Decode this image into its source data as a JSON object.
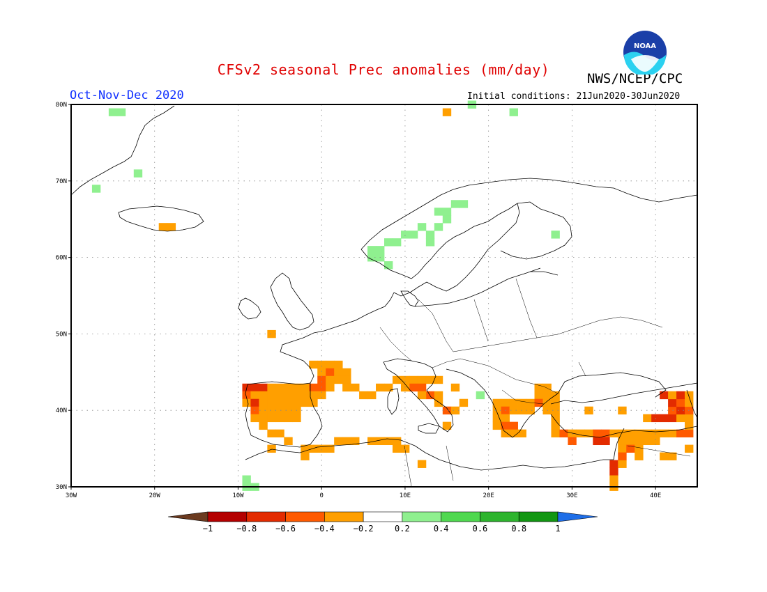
{
  "header": {
    "title": "CFSv2 seasonal Prec anomalies (mm/day)",
    "org": "NWS/NCEP/CPC",
    "period": "Oct-Nov-Dec 2020",
    "initial_conditions": "Initial conditions: 21Jun2020-30Jun2020",
    "logo_text": "NOAA"
  },
  "map": {
    "lon_range": [
      -30,
      45
    ],
    "lat_range": [
      30,
      80
    ],
    "lon_ticks": [
      "30W",
      "20W",
      "10W",
      "0",
      "10E",
      "20E",
      "30E",
      "40E"
    ],
    "lat_ticks": [
      "30N",
      "40N",
      "50N",
      "60N",
      "70N",
      "80N"
    ],
    "grid_style": "dotted"
  },
  "colorbar": {
    "labels": [
      "-1",
      "-0.8",
      "-0.6",
      "-0.4",
      "-0.2",
      "0.2",
      "0.4",
      "0.6",
      "0.8",
      "1"
    ],
    "colors": [
      "#6b3a1f",
      "#b40000",
      "#e32b00",
      "#ff5a00",
      "#ff9f00",
      "#ffffff",
      "#8ff08f",
      "#4fd84f",
      "#2db42d",
      "#129612",
      "#1e6ee8"
    ]
  },
  "anomalies": [
    {
      "lon": -25,
      "lat": 79,
      "v": 0.3
    },
    {
      "lon": -24,
      "lat": 79,
      "v": 0.3
    },
    {
      "lon": -27,
      "lat": 69,
      "v": 0.3
    },
    {
      "lon": -22,
      "lat": 71,
      "v": 0.3
    },
    {
      "lon": -19,
      "lat": 64,
      "v": -0.3
    },
    {
      "lon": -18,
      "lat": 64,
      "v": -0.3
    },
    {
      "lon": 13,
      "lat": 63,
      "v": 0.3
    },
    {
      "lon": 14,
      "lat": 64,
      "v": 0.3
    },
    {
      "lon": 15,
      "lat": 65,
      "v": 0.3
    },
    {
      "lon": 15,
      "lat": 66,
      "v": 0.3
    },
    {
      "lon": 14,
      "lat": 66,
      "v": 0.3
    },
    {
      "lon": 12,
      "lat": 64,
      "v": 0.3
    },
    {
      "lon": 11,
      "lat": 63,
      "v": 0.3
    },
    {
      "lon": 10,
      "lat": 63,
      "v": 0.3
    },
    {
      "lon": 9,
      "lat": 62,
      "v": 0.3
    },
    {
      "lon": 8,
      "lat": 62,
      "v": 0.3
    },
    {
      "lon": 7,
      "lat": 61,
      "v": 0.3
    },
    {
      "lon": 6,
      "lat": 61,
      "v": 0.3
    },
    {
      "lon": 6,
      "lat": 60,
      "v": 0.3
    },
    {
      "lon": 7,
      "lat": 60,
      "v": 0.3
    },
    {
      "lon": 8,
      "lat": 59,
      "v": 0.3
    },
    {
      "lon": 13,
      "lat": 62,
      "v": 0.3
    },
    {
      "lon": 16,
      "lat": 67,
      "v": 0.3
    },
    {
      "lon": 17,
      "lat": 67,
      "v": 0.3
    },
    {
      "lon": 28,
      "lat": 63,
      "v": 0.3
    },
    {
      "lon": 18,
      "lat": 80,
      "v": 0.3
    },
    {
      "lon": 23,
      "lat": 79,
      "v": 0.3
    },
    {
      "lon": 15,
      "lat": 79,
      "v": -0.3
    },
    {
      "lon": -6,
      "lat": 50,
      "v": -0.3
    },
    {
      "lon": -9,
      "lat": 43,
      "v": -0.7
    },
    {
      "lon": -8,
      "lat": 43,
      "v": -0.7
    },
    {
      "lon": -7,
      "lat": 43,
      "v": -0.7
    },
    {
      "lon": -6,
      "lat": 43,
      "v": -0.3
    },
    {
      "lon": -5,
      "lat": 43,
      "v": -0.3
    },
    {
      "lon": -4,
      "lat": 43,
      "v": -0.3
    },
    {
      "lon": -3,
      "lat": 43,
      "v": -0.3
    },
    {
      "lon": -2,
      "lat": 43,
      "v": -0.3
    },
    {
      "lon": -1,
      "lat": 43,
      "v": -0.5
    },
    {
      "lon": 0,
      "lat": 43,
      "v": -0.5
    },
    {
      "lon": 1,
      "lat": 43,
      "v": -0.3
    },
    {
      "lon": -9,
      "lat": 42,
      "v": -0.5
    },
    {
      "lon": -8,
      "lat": 42,
      "v": -0.3
    },
    {
      "lon": -7,
      "lat": 42,
      "v": -0.3
    },
    {
      "lon": -6,
      "lat": 42,
      "v": -0.3
    },
    {
      "lon": -5,
      "lat": 42,
      "v": -0.3
    },
    {
      "lon": -4,
      "lat": 42,
      "v": -0.3
    },
    {
      "lon": -3,
      "lat": 42,
      "v": -0.3
    },
    {
      "lon": -2,
      "lat": 42,
      "v": -0.3
    },
    {
      "lon": -1,
      "lat": 42,
      "v": -0.3
    },
    {
      "lon": 0,
      "lat": 42,
      "v": -0.3
    },
    {
      "lon": -9,
      "lat": 41,
      "v": -0.3
    },
    {
      "lon": -8,
      "lat": 41,
      "v": -0.7
    },
    {
      "lon": -7,
      "lat": 41,
      "v": -0.3
    },
    {
      "lon": -6,
      "lat": 41,
      "v": -0.3
    },
    {
      "lon": -5,
      "lat": 41,
      "v": -0.3
    },
    {
      "lon": -4,
      "lat": 41,
      "v": -0.3
    },
    {
      "lon": -3,
      "lat": 41,
      "v": -0.3
    },
    {
      "lon": -2,
      "lat": 41,
      "v": -0.3
    },
    {
      "lon": -1,
      "lat": 41,
      "v": -0.3
    },
    {
      "lon": -8,
      "lat": 40,
      "v": -0.5
    },
    {
      "lon": -7,
      "lat": 40,
      "v": -0.3
    },
    {
      "lon": -6,
      "lat": 40,
      "v": -0.3
    },
    {
      "lon": -5,
      "lat": 40,
      "v": -0.3
    },
    {
      "lon": -4,
      "lat": 40,
      "v": -0.3
    },
    {
      "lon": -3,
      "lat": 40,
      "v": -0.3
    },
    {
      "lon": -8,
      "lat": 39,
      "v": -0.3
    },
    {
      "lon": -7,
      "lat": 39,
      "v": -0.3
    },
    {
      "lon": -6,
      "lat": 39,
      "v": -0.3
    },
    {
      "lon": -5,
      "lat": 39,
      "v": -0.3
    },
    {
      "lon": -4,
      "lat": 39,
      "v": -0.3
    },
    {
      "lon": -3,
      "lat": 39,
      "v": -0.3
    },
    {
      "lon": -7,
      "lat": 38,
      "v": -0.3
    },
    {
      "lon": -6,
      "lat": 37,
      "v": -0.3
    },
    {
      "lon": -5,
      "lat": 37,
      "v": -0.3
    },
    {
      "lon": -4,
      "lat": 36,
      "v": -0.3
    },
    {
      "lon": -1,
      "lat": 46,
      "v": -0.3
    },
    {
      "lon": 0,
      "lat": 46,
      "v": -0.3
    },
    {
      "lon": 1,
      "lat": 46,
      "v": -0.3
    },
    {
      "lon": 2,
      "lat": 46,
      "v": -0.3
    },
    {
      "lon": 0,
      "lat": 45,
      "v": -0.3
    },
    {
      "lon": 1,
      "lat": 45,
      "v": -0.5
    },
    {
      "lon": 2,
      "lat": 45,
      "v": -0.3
    },
    {
      "lon": 3,
      "lat": 45,
      "v": -0.3
    },
    {
      "lon": 0,
      "lat": 44,
      "v": -0.5
    },
    {
      "lon": 1,
      "lat": 44,
      "v": -0.3
    },
    {
      "lon": 2,
      "lat": 44,
      "v": -0.3
    },
    {
      "lon": 3,
      "lat": 44,
      "v": -0.3
    },
    {
      "lon": 4,
      "lat": 43,
      "v": -0.3
    },
    {
      "lon": 5,
      "lat": 42,
      "v": -0.3
    },
    {
      "lon": 6,
      "lat": 42,
      "v": -0.3
    },
    {
      "lon": 7,
      "lat": 43,
      "v": -0.3
    },
    {
      "lon": 8,
      "lat": 43,
      "v": -0.3
    },
    {
      "lon": 9,
      "lat": 44,
      "v": -0.3
    },
    {
      "lon": 10,
      "lat": 44,
      "v": -0.3
    },
    {
      "lon": 11,
      "lat": 44,
      "v": -0.3
    },
    {
      "lon": 12,
      "lat": 44,
      "v": -0.3
    },
    {
      "lon": 13,
      "lat": 44,
      "v": -0.3
    },
    {
      "lon": 14,
      "lat": 44,
      "v": -0.3
    },
    {
      "lon": 11,
      "lat": 43,
      "v": -0.5
    },
    {
      "lon": 12,
      "lat": 43,
      "v": -0.5
    },
    {
      "lon": 13,
      "lat": 42,
      "v": -0.5
    },
    {
      "lon": 12,
      "lat": 42,
      "v": -0.3
    },
    {
      "lon": 14,
      "lat": 42,
      "v": -0.3
    },
    {
      "lon": 14,
      "lat": 41,
      "v": -0.3
    },
    {
      "lon": 15,
      "lat": 40,
      "v": -0.5
    },
    {
      "lon": 16,
      "lat": 40,
      "v": -0.3
    },
    {
      "lon": 17,
      "lat": 41,
      "v": -0.3
    },
    {
      "lon": 15,
      "lat": 38,
      "v": -0.3
    },
    {
      "lon": 16,
      "lat": 43,
      "v": -0.3
    },
    {
      "lon": 21,
      "lat": 41,
      "v": -0.3
    },
    {
      "lon": 22,
      "lat": 41,
      "v": -0.3
    },
    {
      "lon": 23,
      "lat": 41,
      "v": -0.3
    },
    {
      "lon": 24,
      "lat": 41,
      "v": -0.3
    },
    {
      "lon": 25,
      "lat": 41,
      "v": -0.3
    },
    {
      "lon": 26,
      "lat": 42,
      "v": -0.3
    },
    {
      "lon": 27,
      "lat": 42,
      "v": -0.3
    },
    {
      "lon": 28,
      "lat": 42,
      "v": -0.3
    },
    {
      "lon": 26,
      "lat": 43,
      "v": -0.3
    },
    {
      "lon": 27,
      "lat": 43,
      "v": -0.3
    },
    {
      "lon": 21,
      "lat": 40,
      "v": -0.3
    },
    {
      "lon": 22,
      "lat": 40,
      "v": -0.5
    },
    {
      "lon": 23,
      "lat": 40,
      "v": -0.3
    },
    {
      "lon": 24,
      "lat": 40,
      "v": -0.3
    },
    {
      "lon": 25,
      "lat": 40,
      "v": -0.3
    },
    {
      "lon": 26,
      "lat": 41,
      "v": -0.5
    },
    {
      "lon": 27,
      "lat": 41,
      "v": -0.3
    },
    {
      "lon": 28,
      "lat": 41,
      "v": -0.3
    },
    {
      "lon": 21,
      "lat": 39,
      "v": -0.3
    },
    {
      "lon": 22,
      "lat": 39,
      "v": -0.3
    },
    {
      "lon": 21,
      "lat": 38,
      "v": -0.3
    },
    {
      "lon": 22,
      "lat": 38,
      "v": -0.5
    },
    {
      "lon": 23,
      "lat": 38,
      "v": -0.5
    },
    {
      "lon": 24,
      "lat": 37,
      "v": -0.3
    },
    {
      "lon": 22,
      "lat": 37,
      "v": -0.3
    },
    {
      "lon": 23,
      "lat": 37,
      "v": -0.3
    },
    {
      "lon": 27,
      "lat": 40,
      "v": -0.3
    },
    {
      "lon": 28,
      "lat": 40,
      "v": -0.3
    },
    {
      "lon": 28,
      "lat": 39,
      "v": -0.3
    },
    {
      "lon": 28,
      "lat": 38,
      "v": -0.3
    },
    {
      "lon": 28,
      "lat": 37,
      "v": -0.3
    },
    {
      "lon": 29,
      "lat": 37,
      "v": -0.5
    },
    {
      "lon": 30,
      "lat": 37,
      "v": -0.3
    },
    {
      "lon": 30,
      "lat": 36,
      "v": -0.5
    },
    {
      "lon": 31,
      "lat": 37,
      "v": -0.3
    },
    {
      "lon": 32,
      "lat": 37,
      "v": -0.3
    },
    {
      "lon": 33,
      "lat": 37,
      "v": -0.5
    },
    {
      "lon": 34,
      "lat": 37,
      "v": -0.5
    },
    {
      "lon": 33,
      "lat": 36,
      "v": -0.7
    },
    {
      "lon": 34,
      "lat": 36,
      "v": -0.7
    },
    {
      "lon": 35,
      "lat": 37,
      "v": -0.3
    },
    {
      "lon": 36,
      "lat": 37,
      "v": -0.3
    },
    {
      "lon": 37,
      "lat": 37,
      "v": -0.3
    },
    {
      "lon": 38,
      "lat": 37,
      "v": -0.3
    },
    {
      "lon": 39,
      "lat": 37,
      "v": -0.3
    },
    {
      "lon": 40,
      "lat": 37,
      "v": -0.3
    },
    {
      "lon": 41,
      "lat": 37,
      "v": -0.3
    },
    {
      "lon": 42,
      "lat": 37,
      "v": -0.3
    },
    {
      "lon": 43,
      "lat": 37,
      "v": -0.5
    },
    {
      "lon": 44,
      "lat": 37,
      "v": -0.5
    },
    {
      "lon": 44,
      "lat": 38,
      "v": -0.3
    },
    {
      "lon": 39,
      "lat": 39,
      "v": -0.3
    },
    {
      "lon": 40,
      "lat": 39,
      "v": -0.7
    },
    {
      "lon": 41,
      "lat": 39,
      "v": -0.7
    },
    {
      "lon": 42,
      "lat": 39,
      "v": -0.7
    },
    {
      "lon": 43,
      "lat": 39,
      "v": -0.3
    },
    {
      "lon": 44,
      "lat": 39,
      "v": -0.3
    },
    {
      "lon": 42,
      "lat": 40,
      "v": -0.5
    },
    {
      "lon": 43,
      "lat": 40,
      "v": -0.7
    },
    {
      "lon": 44,
      "lat": 40,
      "v": -0.5
    },
    {
      "lon": 42,
      "lat": 41,
      "v": -0.7
    },
    {
      "lon": 43,
      "lat": 41,
      "v": -0.5
    },
    {
      "lon": 44,
      "lat": 41,
      "v": -0.3
    },
    {
      "lon": 41,
      "lat": 42,
      "v": -0.7
    },
    {
      "lon": 42,
      "lat": 42,
      "v": -0.3
    },
    {
      "lon": 43,
      "lat": 42,
      "v": -0.7
    },
    {
      "lon": 44,
      "lat": 42,
      "v": -0.3
    },
    {
      "lon": 36,
      "lat": 40,
      "v": -0.3
    },
    {
      "lon": 36,
      "lat": 36,
      "v": -0.3
    },
    {
      "lon": 37,
      "lat": 36,
      "v": -0.3
    },
    {
      "lon": 38,
      "lat": 36,
      "v": -0.3
    },
    {
      "lon": 39,
      "lat": 36,
      "v": -0.3
    },
    {
      "lon": 40,
      "lat": 36,
      "v": -0.3
    },
    {
      "lon": 36,
      "lat": 35,
      "v": -0.3
    },
    {
      "lon": 37,
      "lat": 35,
      "v": -0.5
    },
    {
      "lon": 38,
      "lat": 35,
      "v": -0.3
    },
    {
      "lon": 35,
      "lat": 33,
      "v": -0.7
    },
    {
      "lon": 36,
      "lat": 33,
      "v": -0.3
    },
    {
      "lon": 35,
      "lat": 32,
      "v": -0.7
    },
    {
      "lon": 36,
      "lat": 34,
      "v": -0.5
    },
    {
      "lon": 35,
      "lat": 31,
      "v": -0.3
    },
    {
      "lon": 35,
      "lat": 30,
      "v": -0.3
    },
    {
      "lon": 38,
      "lat": 34,
      "v": -0.3
    },
    {
      "lon": 41,
      "lat": 34,
      "v": -0.3
    },
    {
      "lon": 42,
      "lat": 34,
      "v": -0.3
    },
    {
      "lon": 44,
      "lat": 35,
      "v": -0.3
    },
    {
      "lon": 32,
      "lat": 40,
      "v": -0.3
    },
    {
      "lon": -6,
      "lat": 35,
      "v": -0.3
    },
    {
      "lon": -2,
      "lat": 35,
      "v": -0.3
    },
    {
      "lon": -1,
      "lat": 35,
      "v": -0.3
    },
    {
      "lon": 0,
      "lat": 35,
      "v": -0.3
    },
    {
      "lon": 1,
      "lat": 35,
      "v": -0.3
    },
    {
      "lon": 2,
      "lat": 36,
      "v": -0.3
    },
    {
      "lon": 3,
      "lat": 36,
      "v": -0.3
    },
    {
      "lon": 4,
      "lat": 36,
      "v": -0.3
    },
    {
      "lon": -2,
      "lat": 34,
      "v": -0.3
    },
    {
      "lon": 6,
      "lat": 36,
      "v": -0.3
    },
    {
      "lon": 7,
      "lat": 36,
      "v": -0.3
    },
    {
      "lon": 8,
      "lat": 36,
      "v": -0.3
    },
    {
      "lon": 9,
      "lat": 36,
      "v": -0.3
    },
    {
      "lon": 9,
      "lat": 35,
      "v": -0.3
    },
    {
      "lon": 10,
      "lat": 35,
      "v": -0.3
    },
    {
      "lon": 12,
      "lat": 33,
      "v": -0.3
    },
    {
      "lon": 10,
      "lat": 43,
      "v": -0.3
    },
    {
      "lon": 3,
      "lat": 43,
      "v": -0.3
    },
    {
      "lon": -9,
      "lat": 31,
      "v": 0.3
    },
    {
      "lon": -8,
      "lat": 30,
      "v": 0.3
    },
    {
      "lon": -9,
      "lat": 30,
      "v": 0.3
    },
    {
      "lon": 19,
      "lat": 42,
      "v": 0.3
    }
  ]
}
